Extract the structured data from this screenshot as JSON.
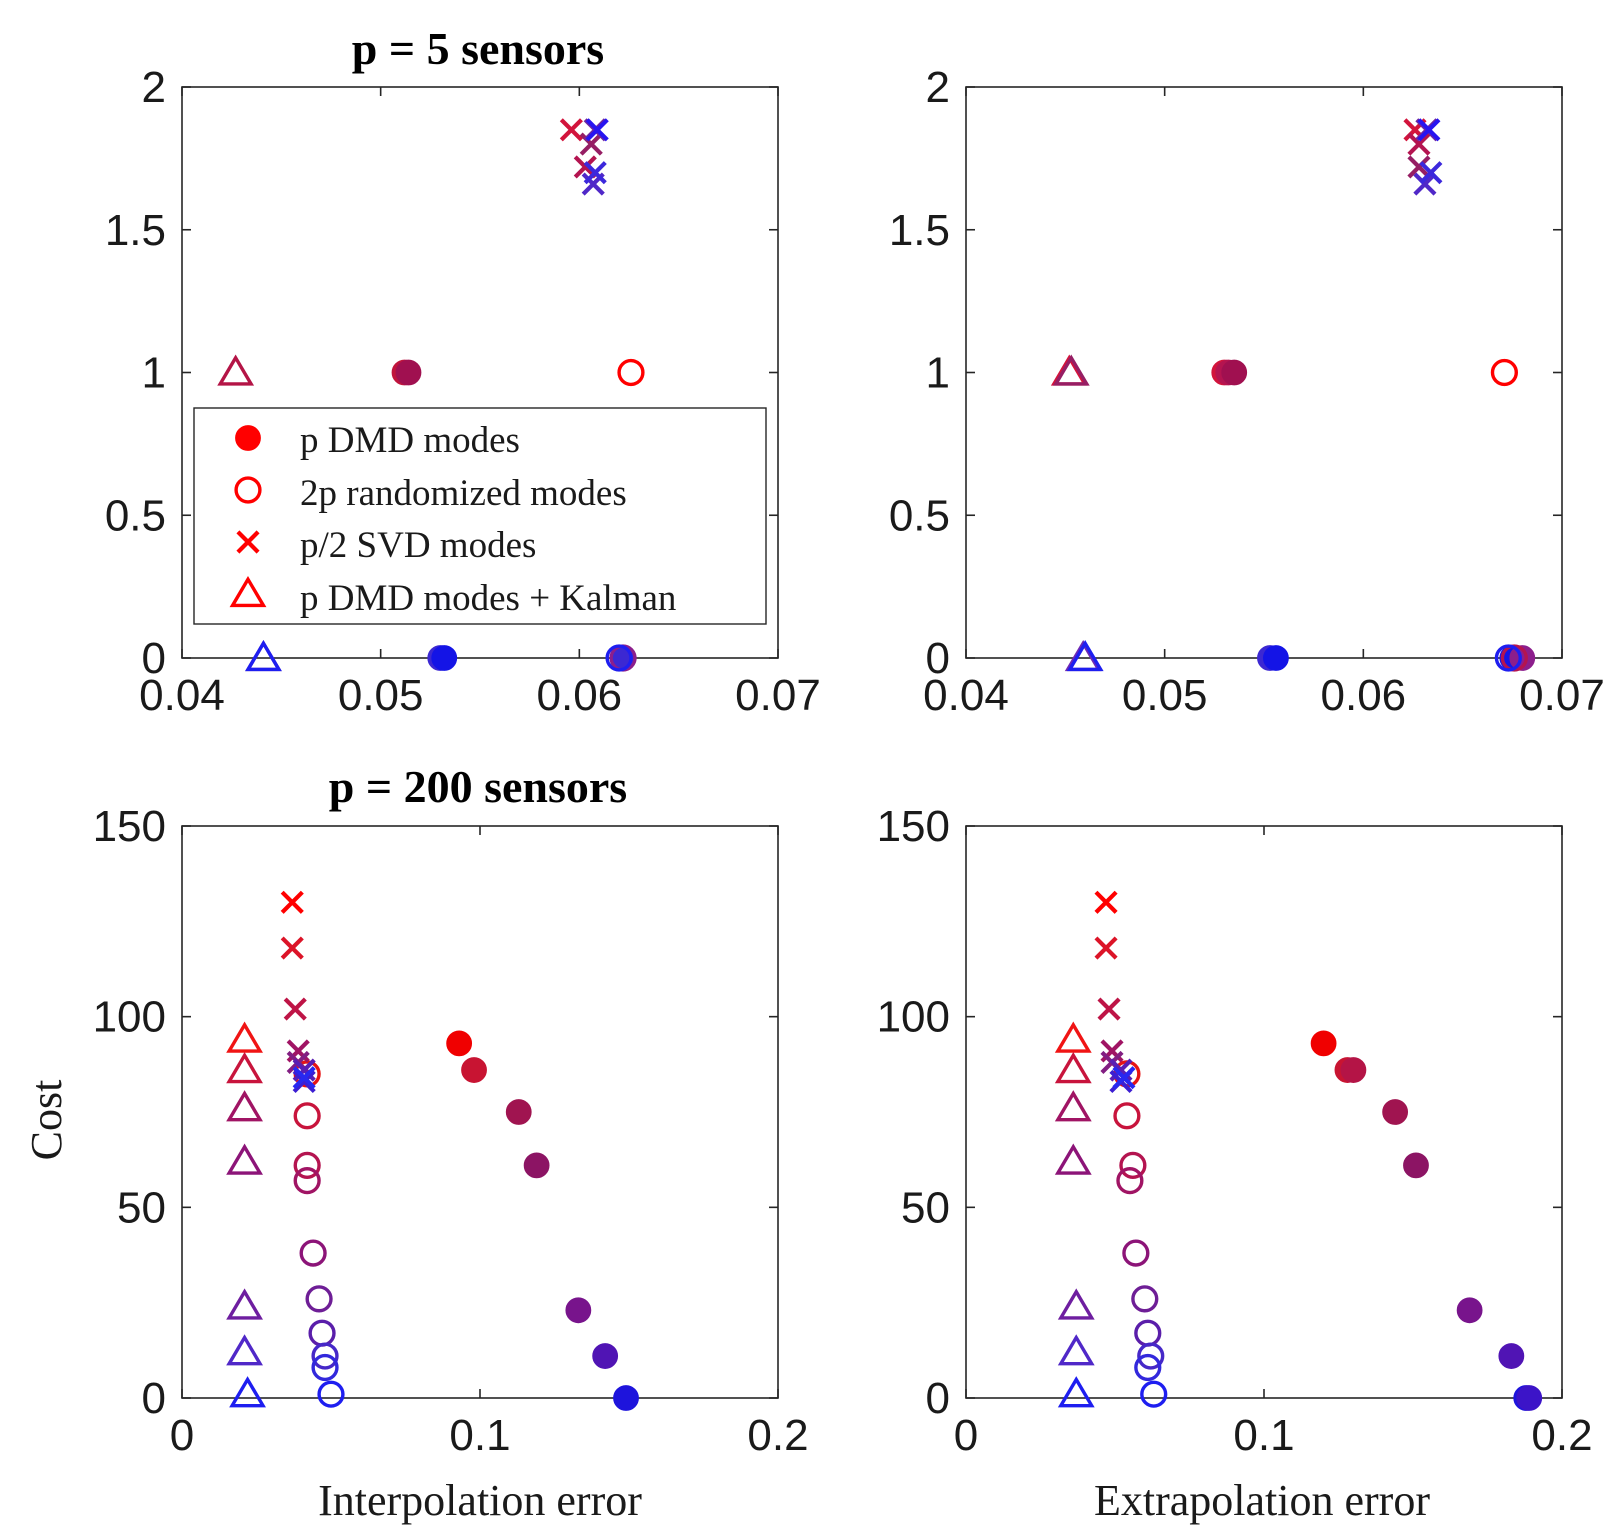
{
  "figure": {
    "titles": {
      "top": "p = 5 sensors",
      "bottom": "p = 200 sensors"
    },
    "ylabel": "Cost",
    "xlabels": {
      "left": "Interpolation error",
      "right": "Extrapolation error"
    },
    "legend": {
      "placement": "inside top-left panel, lower-left",
      "entries": [
        {
          "label": "p DMD modes",
          "marker": "filled-circle",
          "color": "#ff0000"
        },
        {
          "label": "2p randomized modes",
          "marker": "open-circle",
          "color": "#ff0000"
        },
        {
          "label": "p/2 SVD modes",
          "marker": "x",
          "color": "#ff0000"
        },
        {
          "label": "p DMD modes + Kalman",
          "marker": "open-triangle",
          "color": "#ff0000"
        }
      ]
    },
    "colors": {
      "high_cost": "#ff0000",
      "low_cost": "#0000ff"
    }
  },
  "chart_data": [
    {
      "panel": "top-left",
      "type": "scatter",
      "title": "p = 5 sensors",
      "xlabel": "",
      "ylabel": "",
      "xlim": [
        0.04,
        0.07
      ],
      "ylim": [
        0,
        2
      ],
      "xticks": [
        "0.04",
        "0.05",
        "0.06",
        "0.07"
      ],
      "yticks": [
        "0",
        "0.5",
        "1",
        "1.5",
        "2"
      ],
      "grid": false,
      "series": [
        {
          "name": "p DMD modes",
          "marker": "filled-circle",
          "points": [
            {
              "x": 0.0512,
              "y": 1,
              "color": "#c0143c"
            },
            {
              "x": 0.0514,
              "y": 1,
              "color": "#a01050"
            },
            {
              "x": 0.053,
              "y": 0,
              "color": "#3c28d2"
            },
            {
              "x": 0.0532,
              "y": 0,
              "color": "#1414e6"
            },
            {
              "x": 0.0622,
              "y": 0,
              "color": "#3c28d2"
            }
          ]
        },
        {
          "name": "2p randomized modes",
          "marker": "open-circle",
          "points": [
            {
              "x": 0.0626,
              "y": 1,
              "color": "#ff0000"
            },
            {
              "x": 0.0622,
              "y": 0,
              "color": "#8c1e8c"
            },
            {
              "x": 0.062,
              "y": 0,
              "color": "#1e1ef0"
            }
          ]
        },
        {
          "name": "p/2 SVD modes",
          "marker": "x",
          "points": [
            {
              "x": 0.0596,
              "y": 1.85,
              "color": "#d2143c"
            },
            {
              "x": 0.0603,
              "y": 1.72,
              "color": "#b41450"
            },
            {
              "x": 0.0606,
              "y": 1.8,
              "color": "#961e64"
            },
            {
              "x": 0.0608,
              "y": 1.85,
              "color": "#6e28a0"
            },
            {
              "x": 0.0607,
              "y": 1.66,
              "color": "#5028c8"
            },
            {
              "x": 0.0608,
              "y": 1.7,
              "color": "#3c28dc"
            },
            {
              "x": 0.0609,
              "y": 1.85,
              "color": "#2814f0"
            }
          ]
        },
        {
          "name": "p DMD modes + Kalman",
          "marker": "open-triangle",
          "points": [
            {
              "x": 0.0427,
              "y": 1,
              "color": "#b41446"
            },
            {
              "x": 0.0441,
              "y": 0,
              "color": "#6e28b4"
            },
            {
              "x": 0.0441,
              "y": 0,
              "color": "#1e1ef0"
            }
          ]
        }
      ]
    },
    {
      "panel": "top-right",
      "type": "scatter",
      "title": "",
      "xlabel": "",
      "ylabel": "",
      "xlim": [
        0.04,
        0.07
      ],
      "ylim": [
        0,
        2
      ],
      "xticks": [
        "0.04",
        "0.05",
        "0.06",
        "0.07"
      ],
      "yticks": [
        "0",
        "0.5",
        "1",
        "1.5",
        "2"
      ],
      "grid": false,
      "series": [
        {
          "name": "p DMD modes",
          "marker": "filled-circle",
          "points": [
            {
              "x": 0.053,
              "y": 1,
              "color": "#d2143c"
            },
            {
              "x": 0.0532,
              "y": 1,
              "color": "#b41450"
            },
            {
              "x": 0.0535,
              "y": 1,
              "color": "#a01050"
            },
            {
              "x": 0.0553,
              "y": 0,
              "color": "#3c28d2"
            },
            {
              "x": 0.0556,
              "y": 0,
              "color": "#1414e6"
            },
            {
              "x": 0.0675,
              "y": 0,
              "color": "#1414e6"
            },
            {
              "x": 0.068,
              "y": 0,
              "color": "#8c1e8c"
            }
          ]
        },
        {
          "name": "2p randomized modes",
          "marker": "open-circle",
          "points": [
            {
              "x": 0.0671,
              "y": 1,
              "color": "#ff0000"
            },
            {
              "x": 0.0676,
              "y": 0,
              "color": "#b41450"
            },
            {
              "x": 0.0673,
              "y": 0,
              "color": "#1e1ef0"
            }
          ]
        },
        {
          "name": "p/2 SVD modes",
          "marker": "x",
          "points": [
            {
              "x": 0.0626,
              "y": 1.85,
              "color": "#d2143c"
            },
            {
              "x": 0.0628,
              "y": 1.8,
              "color": "#b41450"
            },
            {
              "x": 0.0628,
              "y": 1.72,
              "color": "#961e64"
            },
            {
              "x": 0.0632,
              "y": 1.85,
              "color": "#6e28a0"
            },
            {
              "x": 0.0631,
              "y": 1.66,
              "color": "#5028c8"
            },
            {
              "x": 0.0634,
              "y": 1.7,
              "color": "#3c28dc"
            },
            {
              "x": 0.0633,
              "y": 1.85,
              "color": "#2814f0"
            }
          ]
        },
        {
          "name": "p DMD modes + Kalman",
          "marker": "open-triangle",
          "points": [
            {
              "x": 0.0452,
              "y": 1,
              "color": "#d2143c"
            },
            {
              "x": 0.0453,
              "y": 1,
              "color": "#961e64"
            },
            {
              "x": 0.0459,
              "y": 0,
              "color": "#6e28b4"
            },
            {
              "x": 0.046,
              "y": 0,
              "color": "#1e1ef0"
            }
          ]
        }
      ]
    },
    {
      "panel": "bottom-left",
      "type": "scatter",
      "title": "p = 200 sensors",
      "xlabel": "Interpolation error",
      "ylabel": "Cost",
      "xlim": [
        0,
        0.2
      ],
      "ylim": [
        0,
        150
      ],
      "xticks": [
        "0",
        "0.1",
        "0.2"
      ],
      "yticks": [
        "0",
        "50",
        "100",
        "150"
      ],
      "grid": false,
      "series": [
        {
          "name": "p DMD modes",
          "marker": "filled-circle",
          "points": [
            {
              "x": 0.093,
              "y": 93,
              "color": "#f00000"
            },
            {
              "x": 0.098,
              "y": 86,
              "color": "#c81432"
            },
            {
              "x": 0.113,
              "y": 75,
              "color": "#a01450"
            },
            {
              "x": 0.119,
              "y": 61,
              "color": "#8c1464"
            },
            {
              "x": 0.133,
              "y": 23,
              "color": "#78148c"
            },
            {
              "x": 0.142,
              "y": 11,
              "color": "#5014b4"
            },
            {
              "x": 0.149,
              "y": 0,
              "color": "#1e14dc"
            }
          ]
        },
        {
          "name": "2p randomized modes",
          "marker": "open-circle",
          "points": [
            {
              "x": 0.042,
              "y": 85,
              "color": "#e61414"
            },
            {
              "x": 0.042,
              "y": 74,
              "color": "#c8143c"
            },
            {
              "x": 0.042,
              "y": 61,
              "color": "#b41450"
            },
            {
              "x": 0.042,
              "y": 57,
              "color": "#a01464"
            },
            {
              "x": 0.044,
              "y": 38,
              "color": "#8c1478"
            },
            {
              "x": 0.046,
              "y": 26,
              "color": "#6e1e96"
            },
            {
              "x": 0.047,
              "y": 17,
              "color": "#5a1eaa"
            },
            {
              "x": 0.048,
              "y": 11,
              "color": "#4628c8"
            },
            {
              "x": 0.048,
              "y": 8,
              "color": "#3228dc"
            },
            {
              "x": 0.05,
              "y": 1,
              "color": "#1e1ef0"
            }
          ]
        },
        {
          "name": "p/2 SVD modes",
          "marker": "x",
          "points": [
            {
              "x": 0.037,
              "y": 130,
              "color": "#ff0000"
            },
            {
              "x": 0.037,
              "y": 118,
              "color": "#dc1428"
            },
            {
              "x": 0.038,
              "y": 102,
              "color": "#be1446"
            },
            {
              "x": 0.039,
              "y": 91,
              "color": "#a01464"
            },
            {
              "x": 0.039,
              "y": 88,
              "color": "#821e82"
            },
            {
              "x": 0.041,
              "y": 86,
              "color": "#5a1eb4"
            },
            {
              "x": 0.041,
              "y": 83,
              "color": "#3c1ed2"
            },
            {
              "x": 0.041,
              "y": 84,
              "color": "#2828f0"
            }
          ]
        },
        {
          "name": "p DMD modes + Kalman",
          "marker": "open-triangle",
          "points": [
            {
              "x": 0.021,
              "y": 94,
              "color": "#f01414"
            },
            {
              "x": 0.021,
              "y": 86,
              "color": "#c8143c"
            },
            {
              "x": 0.021,
              "y": 76,
              "color": "#a01464"
            },
            {
              "x": 0.021,
              "y": 62,
              "color": "#8c1478"
            },
            {
              "x": 0.021,
              "y": 24,
              "color": "#6e1ea0"
            },
            {
              "x": 0.021,
              "y": 12,
              "color": "#5028c8"
            },
            {
              "x": 0.022,
              "y": 1,
              "color": "#1e1ef0"
            }
          ]
        }
      ]
    },
    {
      "panel": "bottom-right",
      "type": "scatter",
      "title": "",
      "xlabel": "Extrapolation error",
      "ylabel": "",
      "xlim": [
        0,
        0.2
      ],
      "ylim": [
        0,
        150
      ],
      "xticks": [
        "0",
        "0.1",
        "0.2"
      ],
      "yticks": [
        "0",
        "50",
        "100",
        "150"
      ],
      "grid": false,
      "series": [
        {
          "name": "p DMD modes",
          "marker": "filled-circle",
          "points": [
            {
              "x": 0.12,
              "y": 93,
              "color": "#f00000"
            },
            {
              "x": 0.128,
              "y": 86,
              "color": "#c81432"
            },
            {
              "x": 0.13,
              "y": 86,
              "color": "#b41446"
            },
            {
              "x": 0.144,
              "y": 75,
              "color": "#a01450"
            },
            {
              "x": 0.151,
              "y": 61,
              "color": "#8c1464"
            },
            {
              "x": 0.169,
              "y": 23,
              "color": "#78148c"
            },
            {
              "x": 0.183,
              "y": 11,
              "color": "#5014b4"
            },
            {
              "x": 0.188,
              "y": 0,
              "color": "#1e14dc"
            },
            {
              "x": 0.189,
              "y": 0,
              "color": "#3c14c8"
            }
          ]
        },
        {
          "name": "2p randomized modes",
          "marker": "open-circle",
          "points": [
            {
              "x": 0.054,
              "y": 85,
              "color": "#e61414"
            },
            {
              "x": 0.054,
              "y": 74,
              "color": "#c8143c"
            },
            {
              "x": 0.056,
              "y": 61,
              "color": "#b41450"
            },
            {
              "x": 0.055,
              "y": 57,
              "color": "#a01464"
            },
            {
              "x": 0.057,
              "y": 38,
              "color": "#8c1478"
            },
            {
              "x": 0.06,
              "y": 26,
              "color": "#6e1e96"
            },
            {
              "x": 0.061,
              "y": 17,
              "color": "#5a1eaa"
            },
            {
              "x": 0.062,
              "y": 11,
              "color": "#4628c8"
            },
            {
              "x": 0.061,
              "y": 8,
              "color": "#3228dc"
            },
            {
              "x": 0.063,
              "y": 1,
              "color": "#1e1ef0"
            }
          ]
        },
        {
          "name": "p/2 SVD modes",
          "marker": "x",
          "points": [
            {
              "x": 0.047,
              "y": 130,
              "color": "#ff0000"
            },
            {
              "x": 0.047,
              "y": 118,
              "color": "#dc1428"
            },
            {
              "x": 0.048,
              "y": 102,
              "color": "#be1446"
            },
            {
              "x": 0.049,
              "y": 91,
              "color": "#a01464"
            },
            {
              "x": 0.049,
              "y": 88,
              "color": "#821e82"
            },
            {
              "x": 0.052,
              "y": 86,
              "color": "#5a1eb4"
            },
            {
              "x": 0.052,
              "y": 83,
              "color": "#3c1ed2"
            },
            {
              "x": 0.053,
              "y": 84,
              "color": "#2828f0"
            }
          ]
        },
        {
          "name": "p DMD modes + Kalman",
          "marker": "open-triangle",
          "points": [
            {
              "x": 0.036,
              "y": 94,
              "color": "#f01414"
            },
            {
              "x": 0.036,
              "y": 86,
              "color": "#c8143c"
            },
            {
              "x": 0.036,
              "y": 76,
              "color": "#a01464"
            },
            {
              "x": 0.036,
              "y": 62,
              "color": "#8c1478"
            },
            {
              "x": 0.037,
              "y": 24,
              "color": "#6e1ea0"
            },
            {
              "x": 0.037,
              "y": 12,
              "color": "#5028c8"
            },
            {
              "x": 0.037,
              "y": 1,
              "color": "#1e1ef0"
            }
          ]
        }
      ]
    }
  ]
}
